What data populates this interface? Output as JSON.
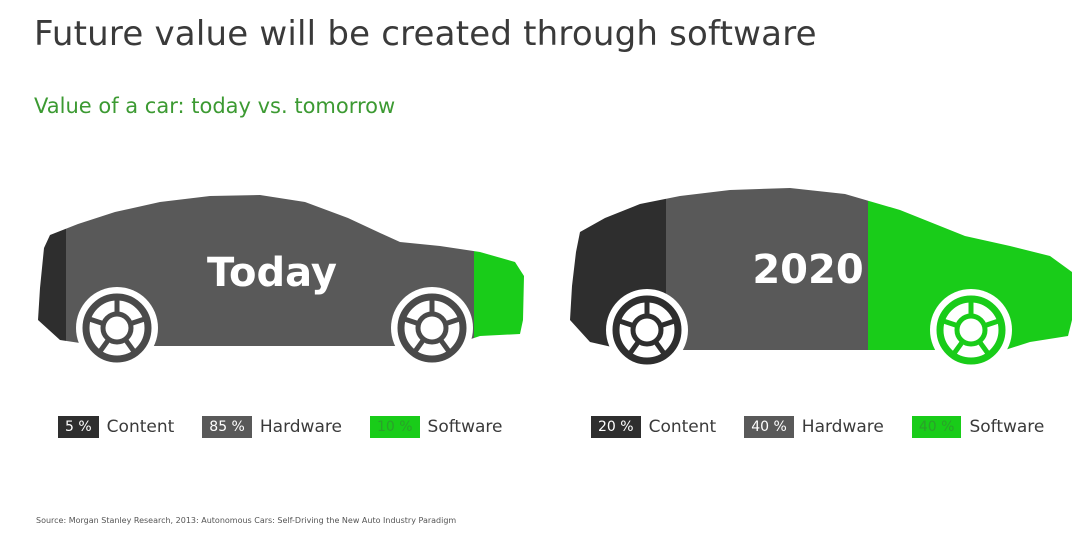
{
  "title": "Future value will be created through software",
  "subtitle": "Value of a car: today vs. tomorrow",
  "colors": {
    "content": "#2e2e2e",
    "hardware": "#595959",
    "software": "#19cc19",
    "subtitle": "#3c9a32"
  },
  "cars": [
    {
      "label": "Today",
      "segments": [
        {
          "name": "Content",
          "percent": 5,
          "percent_text": "5 %"
        },
        {
          "name": "Hardware",
          "percent": 85,
          "percent_text": "85 %"
        },
        {
          "name": "Software",
          "percent": 10,
          "percent_text": "10 %"
        }
      ]
    },
    {
      "label": "2020",
      "segments": [
        {
          "name": "Content",
          "percent": 20,
          "percent_text": "20 %"
        },
        {
          "name": "Hardware",
          "percent": 40,
          "percent_text": "40 %"
        },
        {
          "name": "Software",
          "percent": 40,
          "percent_text": "40 %"
        }
      ]
    }
  ],
  "source": "Source: Morgan Stanley Research, 2013: Autonomous Cars: Self-Driving the New Auto Industry Paradigm"
}
